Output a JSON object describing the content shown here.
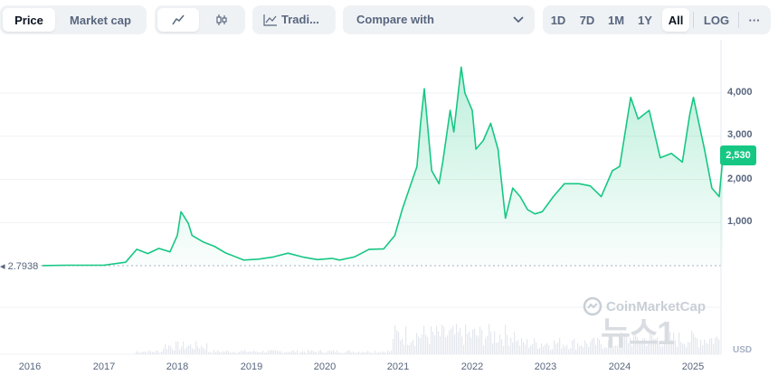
{
  "tabs": [
    {
      "label": "Price",
      "active": true
    },
    {
      "label": "Market cap",
      "active": false
    }
  ],
  "chart_style_icons": [
    "line-chart-icon",
    "candlestick-icon"
  ],
  "tradingview_label": "Tradi...",
  "compare": {
    "label": "Compare with"
  },
  "ranges": [
    {
      "label": "1D",
      "active": false
    },
    {
      "label": "7D",
      "active": false
    },
    {
      "label": "1M",
      "active": false
    },
    {
      "label": "1Y",
      "active": false
    },
    {
      "label": "All",
      "active": true
    }
  ],
  "log_label": "LOG",
  "more_label": "···",
  "watermark": {
    "brand": "CoinMarketCap",
    "overlay": "뉴스1"
  },
  "colors": {
    "line": "#16c784",
    "price_tag": "#16c784",
    "grid": "#eff2f5"
  },
  "chart_data": {
    "type": "area",
    "x_ticks": [
      "2016",
      "2017",
      "2018",
      "2019",
      "2020",
      "2021",
      "2022",
      "2023",
      "2024",
      "2025"
    ],
    "y_ticks": [
      "1,000",
      "2,000",
      "3,000",
      "4,000"
    ],
    "ylim": [
      0,
      4800
    ],
    "unit": "USD",
    "start_value": "2.7938",
    "current_price": "2,530",
    "grid": true,
    "series": [
      {
        "points": [
          [
            2015.6,
            3
          ],
          [
            2016.5,
            10
          ],
          [
            2017.0,
            10
          ],
          [
            2017.3,
            80
          ],
          [
            2017.45,
            380
          ],
          [
            2017.6,
            280
          ],
          [
            2017.75,
            400
          ],
          [
            2017.9,
            320
          ],
          [
            2018.0,
            700
          ],
          [
            2018.05,
            1250
          ],
          [
            2018.15,
            980
          ],
          [
            2018.2,
            700
          ],
          [
            2018.35,
            550
          ],
          [
            2018.5,
            450
          ],
          [
            2018.65,
            300
          ],
          [
            2018.9,
            130
          ],
          [
            2019.1,
            150
          ],
          [
            2019.3,
            200
          ],
          [
            2019.5,
            290
          ],
          [
            2019.7,
            200
          ],
          [
            2019.9,
            140
          ],
          [
            2020.1,
            170
          ],
          [
            2020.2,
            130
          ],
          [
            2020.4,
            200
          ],
          [
            2020.6,
            380
          ],
          [
            2020.8,
            390
          ],
          [
            2020.95,
            700
          ],
          [
            2021.05,
            1300
          ],
          [
            2021.15,
            1800
          ],
          [
            2021.25,
            2300
          ],
          [
            2021.3,
            3300
          ],
          [
            2021.35,
            4100
          ],
          [
            2021.45,
            2200
          ],
          [
            2021.55,
            1900
          ],
          [
            2021.6,
            2400
          ],
          [
            2021.7,
            3600
          ],
          [
            2021.75,
            3100
          ],
          [
            2021.85,
            4600
          ],
          [
            2021.9,
            4000
          ],
          [
            2022.0,
            3600
          ],
          [
            2022.05,
            2700
          ],
          [
            2022.15,
            2900
          ],
          [
            2022.25,
            3300
          ],
          [
            2022.35,
            2700
          ],
          [
            2022.45,
            1100
          ],
          [
            2022.55,
            1800
          ],
          [
            2022.65,
            1600
          ],
          [
            2022.75,
            1300
          ],
          [
            2022.85,
            1200
          ],
          [
            2022.95,
            1250
          ],
          [
            2023.1,
            1600
          ],
          [
            2023.25,
            1900
          ],
          [
            2023.45,
            1900
          ],
          [
            2023.6,
            1850
          ],
          [
            2023.75,
            1600
          ],
          [
            2023.9,
            2200
          ],
          [
            2024.0,
            2300
          ],
          [
            2024.15,
            3900
          ],
          [
            2024.25,
            3400
          ],
          [
            2024.4,
            3600
          ],
          [
            2024.55,
            2500
          ],
          [
            2024.7,
            2600
          ],
          [
            2024.85,
            2400
          ],
          [
            2024.95,
            3500
          ],
          [
            2025.0,
            3900
          ],
          [
            2025.15,
            2700
          ],
          [
            2025.25,
            1800
          ],
          [
            2025.35,
            1600
          ],
          [
            2025.4,
            2530
          ]
        ]
      }
    ]
  }
}
